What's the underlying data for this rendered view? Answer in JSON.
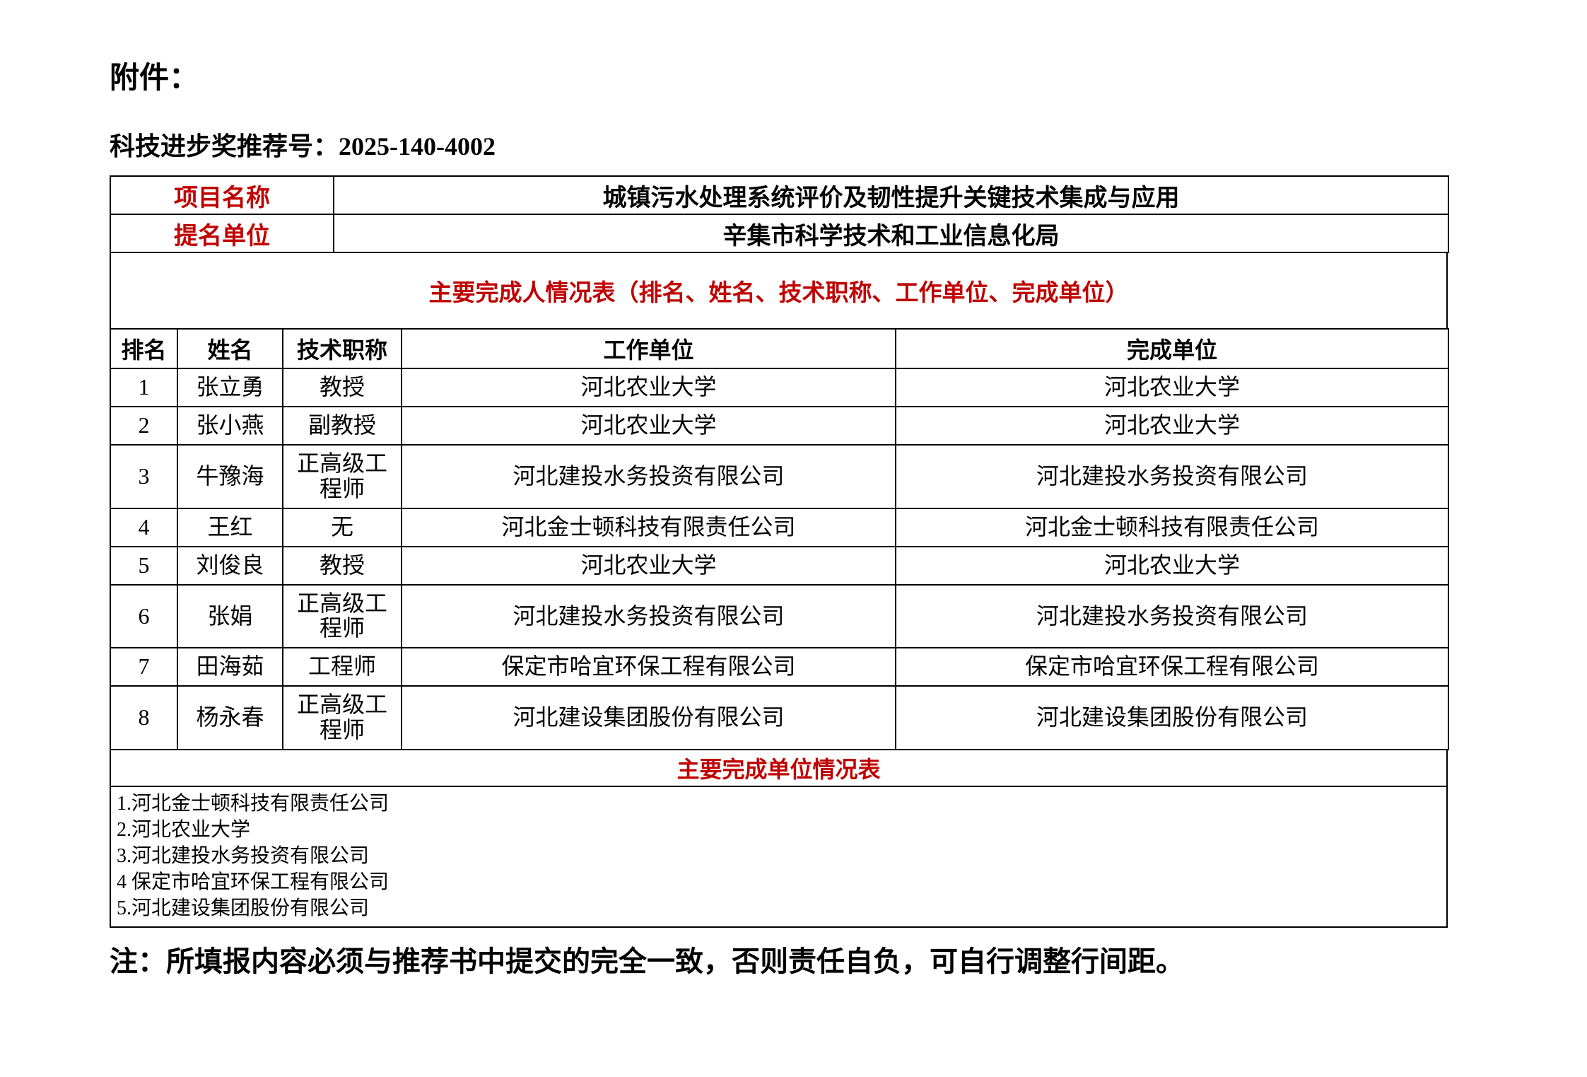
{
  "document": {
    "attachment_label": "附件：",
    "recommendation": {
      "label": "科技进步奖推荐号：",
      "number": "2025-140-4002"
    },
    "note": "注：所填报内容必须与推荐书中提交的完全一致，否则责任自负，可自行调整行间距。"
  },
  "info_table": {
    "rows": [
      {
        "label": "项目名称",
        "value": "城镇污水处理系统评价及韧性提升关键技术集成与应用"
      },
      {
        "label": "提名单位",
        "value": "辛集市科学技术和工业信息化局"
      }
    ]
  },
  "person_table": {
    "title": "主要完成人情况表（排名、姓名、技术职称、工作单位、完成单位）",
    "headers": [
      "排名",
      "姓名",
      "技术职称",
      "工作单位",
      "完成单位"
    ],
    "rows": [
      [
        "1",
        "张立勇",
        "教授",
        "河北农业大学",
        "河北农业大学"
      ],
      [
        "2",
        "张小燕",
        "副教授",
        "河北农业大学",
        "河北农业大学"
      ],
      [
        "3",
        "牛豫海",
        "正高级工程师",
        "河北建投水务投资有限公司",
        "河北建投水务投资有限公司"
      ],
      [
        "4",
        "王红",
        "无",
        "河北金士顿科技有限责任公司",
        "河北金士顿科技有限责任公司"
      ],
      [
        "5",
        "刘俊良",
        "教授",
        "河北农业大学",
        "河北农业大学"
      ],
      [
        "6",
        "张娟",
        "正高级工程师",
        "河北建投水务投资有限公司",
        "河北建投水务投资有限公司"
      ],
      [
        "7",
        "田海茹",
        "工程师",
        "保定市哈宜环保工程有限公司",
        "保定市哈宜环保工程有限公司"
      ],
      [
        "8",
        "杨永春",
        "正高级工程师",
        "河北建设集团股份有限公司",
        "河北建设集团股份有限公司"
      ]
    ]
  },
  "unit_table": {
    "title": "主要完成单位情况表",
    "units": [
      "1.河北金士顿科技有限责任公司",
      "2.河北农业大学",
      "3.河北建投水务投资有限公司",
      "4 保定市哈宜环保工程有限公司",
      "5.河北建设集团股份有限公司"
    ]
  },
  "colors": {
    "accent_red": "#C00000",
    "border_black": "#000000"
  }
}
